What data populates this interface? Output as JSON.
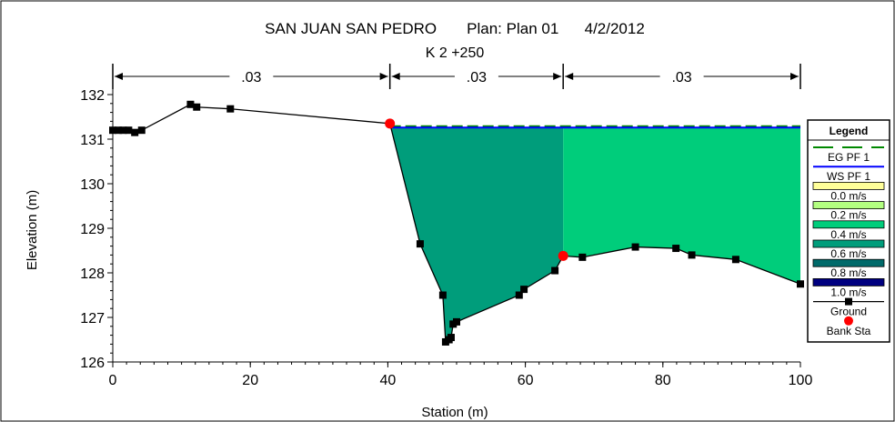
{
  "chart_data": {
    "type": "area",
    "title": "SAN JUAN SAN PEDRO       Plan: Plan 01      4/2/2012",
    "subtitle": "K 2 +250",
    "xlabel": "Station (m)",
    "ylabel": "Elevation (m)",
    "xlim": [
      0,
      100
    ],
    "ylim": [
      126,
      132
    ],
    "xticks": [
      0,
      20,
      40,
      60,
      80,
      100
    ],
    "yticks": [
      126,
      127,
      128,
      129,
      130,
      131,
      132
    ],
    "manning_labels": [
      ".03",
      ".03",
      ".03"
    ],
    "manning_breaks": [
      0,
      40.3,
      65.5,
      100
    ],
    "ground": {
      "x": [
        0,
        0.8,
        1.5,
        2.3,
        3.2,
        4.2,
        11.3,
        12.2,
        17.1,
        40.3,
        44.7,
        48.0,
        48.4,
        48.9,
        49.2,
        49.5,
        50.0,
        59.1,
        59.8,
        64.3,
        65.5,
        68.3,
        76.0,
        81.9,
        84.2,
        90.6,
        100
      ],
      "y": [
        131.2,
        131.2,
        131.2,
        131.2,
        131.15,
        131.2,
        131.78,
        131.72,
        131.68,
        131.35,
        128.65,
        127.5,
        126.45,
        126.5,
        126.55,
        126.85,
        126.9,
        127.5,
        127.63,
        128.05,
        128.38,
        128.35,
        128.58,
        128.55,
        128.4,
        128.3,
        127.75
      ]
    },
    "bank_stations": [
      {
        "x": 40.3,
        "y": 131.35
      },
      {
        "x": 65.5,
        "y": 128.38
      }
    ],
    "water_surface": 131.26,
    "energy_grade": 131.29,
    "velocity_fill": [
      {
        "from": 40.3,
        "to": 65.5,
        "velocity": "0.6 m/s",
        "color": "#009d7b"
      },
      {
        "from": 65.5,
        "to": 100,
        "velocity": "0.4 m/s",
        "color": "#00cd7b"
      }
    ],
    "legend": {
      "title": "Legend",
      "placement": "right",
      "entries": [
        {
          "label": "EG PF 1",
          "kind": "dash",
          "color": "#008800"
        },
        {
          "label": "WS PF 1",
          "kind": "line",
          "color": "#0000ff"
        },
        {
          "label": "0.0 m/s",
          "kind": "box",
          "color": "#ffff99"
        },
        {
          "label": "0.2 m/s",
          "kind": "box",
          "color": "#b3ff80"
        },
        {
          "label": "0.4 m/s",
          "kind": "box",
          "color": "#00cd7b"
        },
        {
          "label": "0.6 m/s",
          "kind": "box",
          "color": "#009d7b"
        },
        {
          "label": "0.8 m/s",
          "kind": "box",
          "color": "#006a6a"
        },
        {
          "label": "1.0 m/s",
          "kind": "box",
          "color": "#000080"
        },
        {
          "label": "Ground",
          "kind": "marker-line",
          "color": "#000000"
        },
        {
          "label": "Bank Sta",
          "kind": "circle",
          "color": "#ff0000"
        }
      ]
    },
    "grid": false
  }
}
